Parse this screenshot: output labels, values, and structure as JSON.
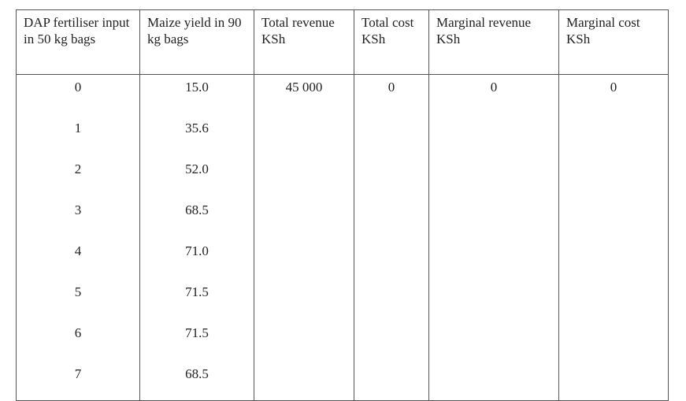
{
  "table": {
    "headers": [
      "DAP fertiliser input in 50 kg bags",
      "Maize yield in 90 kg bags",
      "Total revenue KSh",
      "Total cost KSh",
      "Marginal revenue KSh",
      "Marginal cost KSh"
    ],
    "rows": [
      {
        "input": "0",
        "yield": "15.0",
        "total_revenue": "45 000",
        "total_cost": "0",
        "marginal_revenue": "0",
        "marginal_cost": "0"
      },
      {
        "input": "1",
        "yield": "35.6",
        "total_revenue": "",
        "total_cost": "",
        "marginal_revenue": "",
        "marginal_cost": ""
      },
      {
        "input": "2",
        "yield": "52.0",
        "total_revenue": "",
        "total_cost": "",
        "marginal_revenue": "",
        "marginal_cost": ""
      },
      {
        "input": "3",
        "yield": "68.5",
        "total_revenue": "",
        "total_cost": "",
        "marginal_revenue": "",
        "marginal_cost": ""
      },
      {
        "input": "4",
        "yield": "71.0",
        "total_revenue": "",
        "total_cost": "",
        "marginal_revenue": "",
        "marginal_cost": ""
      },
      {
        "input": "5",
        "yield": "71.5",
        "total_revenue": "",
        "total_cost": "",
        "marginal_revenue": "",
        "marginal_cost": ""
      },
      {
        "input": "6",
        "yield": "71.5",
        "total_revenue": "",
        "total_cost": "",
        "marginal_revenue": "",
        "marginal_cost": ""
      },
      {
        "input": "7",
        "yield": "68.5",
        "total_revenue": "",
        "total_cost": "",
        "marginal_revenue": "",
        "marginal_cost": ""
      }
    ]
  }
}
